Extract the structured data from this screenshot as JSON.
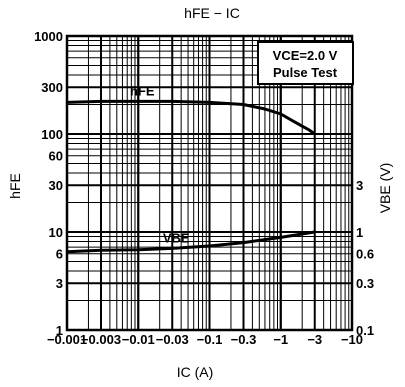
{
  "chart_data": {
    "type": "line",
    "title": "hFE − IC",
    "xlabel": "IC (A)",
    "ylabel": "hFE",
    "y2label": "VBE (V)",
    "x_scale": "log",
    "y_scale": "log",
    "xlim": [
      -0.001,
      -10
    ],
    "ylim": [
      1,
      1000
    ],
    "y2lim": [
      0.1,
      100
    ],
    "grid": true,
    "x_ticks": [
      "−0.001",
      "−0.003",
      "−0.01",
      "−0.03",
      "−0.1",
      "−0.3",
      "−1",
      "−3",
      "−10"
    ],
    "y_ticks": [
      "1",
      "3",
      "6",
      "10",
      "30",
      "60",
      "100",
      "300",
      "1000"
    ],
    "y2_ticks": [
      "0.1",
      "0.3",
      "0.6",
      "1",
      "3"
    ],
    "legend_box": [
      "VCE=2.0 V",
      "Pulse Test"
    ],
    "series": [
      {
        "name": "hFE",
        "axis": "left",
        "x": [
          -0.001,
          -0.003,
          -0.01,
          -0.03,
          -0.1,
          -0.3,
          -0.6,
          -1,
          -1.5,
          -2,
          -2.5,
          -3
        ],
        "values": [
          210,
          215,
          215,
          215,
          210,
          200,
          180,
          160,
          135,
          120,
          110,
          100
        ]
      },
      {
        "name": "VBE",
        "axis": "right",
        "x": [
          -0.001,
          -0.003,
          -0.01,
          -0.03,
          -0.1,
          -0.3,
          -1,
          -3
        ],
        "values": [
          0.63,
          0.65,
          0.66,
          0.68,
          0.72,
          0.78,
          0.88,
          1.0
        ]
      }
    ]
  }
}
